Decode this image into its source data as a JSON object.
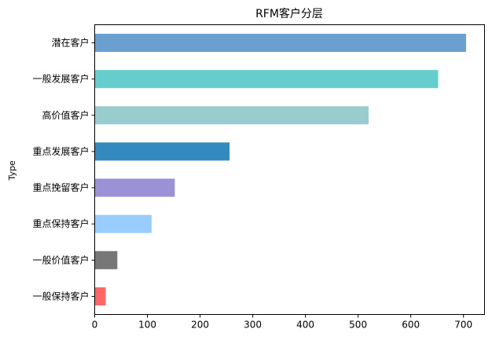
{
  "chart_data": {
    "type": "bar",
    "orientation": "horizontal",
    "title": "RFM客户分层",
    "xlabel": "",
    "ylabel": "Type",
    "xlim": [
      0,
      740
    ],
    "xticks": [
      "0",
      "100",
      "200",
      "300",
      "400",
      "500",
      "600",
      "700"
    ],
    "grid": false,
    "categories": [
      "潜在客户",
      "一般发展客户",
      "高价值客户",
      "重点发展客户",
      "重点挽留客户",
      "重点保持客户",
      "一般价值客户",
      "一般保持客户"
    ],
    "values": [
      705,
      652,
      520,
      256,
      152,
      108,
      43,
      21
    ],
    "colors": [
      "#6a9fcf",
      "#66cccc",
      "#99cccc",
      "#348abf",
      "#9a91d6",
      "#99ccff",
      "#777777",
      "#ff6666"
    ]
  }
}
